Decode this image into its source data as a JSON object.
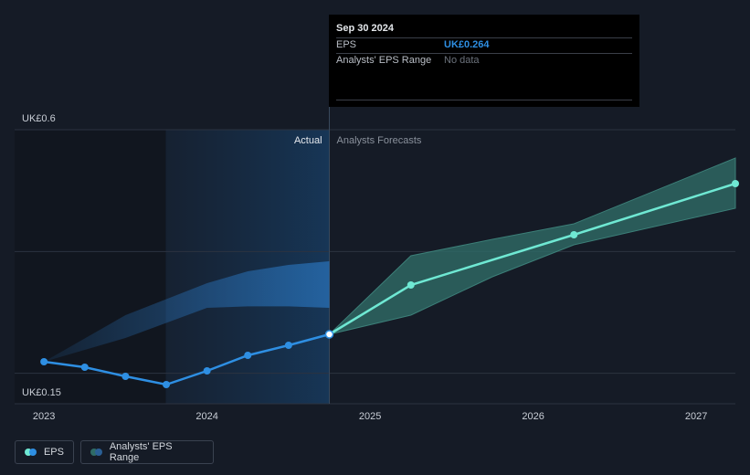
{
  "chart_data": {
    "type": "line",
    "xlim": [
      2022.82,
      2027.24
    ],
    "ylim": [
      0.15,
      0.6
    ],
    "xticks": [
      2023,
      2024,
      2025,
      2026,
      2027
    ],
    "yticks": [
      {
        "value": 0.6,
        "label": "UK£0.6"
      },
      {
        "value": 0.15,
        "label": "UK£0.15"
      }
    ],
    "gridlines": [
      0.2,
      0.4,
      0.6
    ],
    "grid": true,
    "divider": 2024.75,
    "annotations": {
      "actual": "Actual",
      "forecast": "Analysts Forecasts"
    },
    "series": [
      {
        "name": "EPS",
        "color": "#2e8fe3",
        "forecast_color": "#6fe8d3",
        "x": [
          2023,
          2023.25,
          2023.5,
          2023.75,
          2024,
          2024.25,
          2024.5,
          2024.75,
          2025.25,
          2026.25,
          2027.24
        ],
        "values": [
          0.219,
          0.21,
          0.195,
          0.1815,
          0.204,
          0.2295,
          0.246,
          0.264,
          0.345,
          0.4275,
          0.5115
        ]
      }
    ],
    "range": {
      "name": "Analysts' EPS Range",
      "color": "#2a76c0",
      "forecast_color": "#2f6b66",
      "past": {
        "x": [
          2023,
          2023.5,
          2024,
          2024.25,
          2024.5,
          2024.75
        ],
        "low": [
          0.219,
          0.258,
          0.3075,
          0.31,
          0.31,
          0.3075
        ],
        "high": [
          0.219,
          0.2955,
          0.348,
          0.3675,
          0.378,
          0.384
        ]
      },
      "forecast": {
        "x": [
          2024.75,
          2025.25,
          2025.75,
          2026.25,
          2027.24
        ],
        "low": [
          0.264,
          0.2955,
          0.3585,
          0.411,
          0.471
        ],
        "high": [
          0.264,
          0.393,
          0.42,
          0.4455,
          0.5535
        ]
      }
    },
    "tooltip": {
      "date": "Sep 30 2024",
      "rows": [
        {
          "label": "EPS",
          "value": "UK£0.264"
        },
        {
          "label": "Analysts' EPS Range",
          "value": "No data"
        }
      ]
    }
  }
}
